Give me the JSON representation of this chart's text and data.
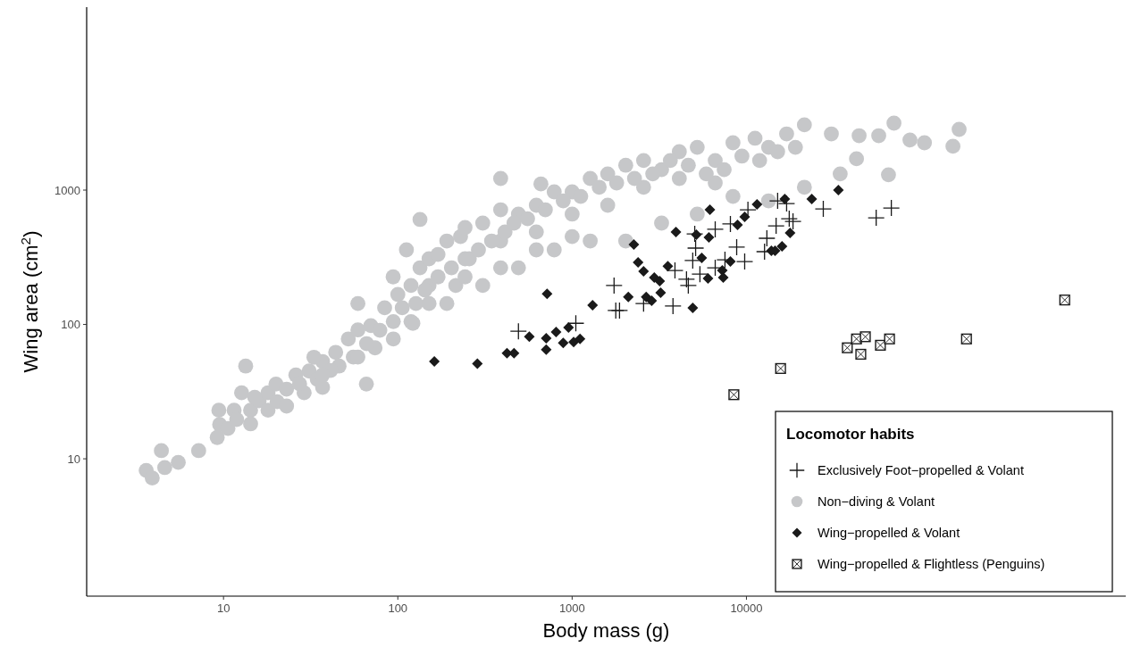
{
  "chart_data": {
    "type": "scatter",
    "xlabel": "Body mass (g)",
    "ylabel": "Wing area (cm$^{2}$)",
    "legend_title": "Locomotor habits",
    "legend": "bottom right",
    "grid": false,
    "log": "xy",
    "xlim": [
      1.64,
      1500000
    ],
    "ylim": [
      0.95,
      23000
    ],
    "xticks": [
      10,
      100,
      1000,
      10000
    ],
    "yticks": [
      10,
      100,
      1000
    ],
    "series": [
      {
        "name": "Exclusively Foot−propelled & Volant",
        "color": "#1a1a1a",
        "marker": "cross",
        "x": [
          492,
          1050,
          1740,
          1780,
          1870,
          2570,
          3790,
          4530,
          4640,
          5050,
          5110,
          4920,
          5410,
          3890,
          6620,
          6620,
          7530,
          8090,
          8790,
          9770,
          10200,
          12700,
          13100,
          14800,
          15100,
          17000,
          17600,
          18500,
          27600,
          55500,
          67800
        ],
        "values": [
          89,
          102,
          195,
          127,
          127,
          143,
          137,
          217,
          195,
          472,
          370,
          299,
          237,
          252,
          511,
          264,
          303,
          560,
          376,
          294,
          714,
          348,
          438,
          542,
          832,
          794,
          612,
          585,
          724,
          622,
          736
        ]
      },
      {
        "name": "Non−diving & Volant",
        "color": "#c6c7c9",
        "marker": "circle",
        "x": [
          3.6,
          3.9,
          4.6,
          5.5,
          7.2,
          9.2,
          9.4,
          11.5,
          12.7,
          14.3,
          16,
          18,
          20,
          23,
          26,
          31,
          37,
          44,
          52,
          59,
          70,
          84,
          100,
          119,
          134,
          151,
          170,
          191,
          229,
          243,
          307,
          389,
          492,
          623,
          789,
          1000,
          1270,
          1600,
          2030,
          2570,
          3260,
          4120,
          5220,
          6620,
          8370,
          11200,
          13400,
          17000,
          21500,
          30700,
          44300,
          57400,
          70200,
          86700,
          105000,
          166000,
          153000,
          42800,
          65300,
          18,
          29,
          46,
          74,
          119,
          191,
          307,
          492,
          789,
          1270,
          2030,
          3260,
          5220,
          8370,
          13400,
          21500,
          34500,
          13.4,
          37,
          122,
          134,
          112,
          662,
          4.4,
          9.5,
          66,
          33,
          59,
          94,
          151,
          243,
          389,
          623,
          1000,
          1600,
          2570,
          4120,
          6620,
          389,
          10.6,
          11.9,
          15.1,
          20.3,
          27.3,
          34.5,
          41.2,
          55.5,
          66.2,
          78.9,
          94.2,
          106,
          127,
          143,
          170,
          203,
          215,
          257,
          290,
          345,
          412,
          464,
          555,
          702,
          889,
          1120,
          1430,
          1800,
          2280,
          2900,
          3660,
          4640,
          5880,
          7450,
          9420,
          11900,
          15100,
          19100,
          623,
          1000,
          389,
          243,
          151,
          94.2,
          59,
          37,
          23,
          14.3
        ],
        "values": [
          8.2,
          7.2,
          8.6,
          9.4,
          11.5,
          14.4,
          23,
          23,
          31,
          23,
          27,
          31,
          36,
          33,
          42,
          45,
          53,
          62,
          78,
          91,
          98,
          133,
          167,
          195,
          264,
          308,
          332,
          418,
          451,
          308,
          568,
          714,
          662,
          771,
          970,
          970,
          1220,
          1320,
          1530,
          1660,
          1420,
          1930,
          2080,
          1660,
          2250,
          2430,
          2080,
          2620,
          3060,
          2620,
          2540,
          2540,
          3150,
          2360,
          2250,
          2830,
          2120,
          1710,
          1300,
          23,
          31,
          49,
          67,
          105,
          143,
          195,
          264,
          359,
          418,
          418,
          568,
          662,
          897,
          832,
          1050,
          1320,
          49,
          34,
          102,
          604,
          359,
          1110,
          11.5,
          18,
          36,
          57,
          143,
          226,
          195,
          526,
          418,
          488,
          662,
          771,
          1050,
          1220,
          1130,
          1220,
          16.8,
          19.6,
          28.7,
          26.6,
          36.1,
          39,
          45.5,
          57.2,
          72,
          90.5,
          105,
          133,
          143,
          180,
          226,
          264,
          195,
          308,
          359,
          418,
          488,
          568,
          612,
          714,
          832,
          897,
          1050,
          1130,
          1220,
          1320,
          1660,
          1530,
          1320,
          1420,
          1790,
          1660,
          1930,
          2080,
          359,
          451,
          264,
          226,
          143,
          78,
          57.2,
          42,
          24.7,
          18.2
        ]
      },
      {
        "name": "Wing−propelled & Volant",
        "color": "#1a1a1a",
        "marker": "diamond",
        "x": [
          162,
          286,
          423,
          464,
          568,
          710,
          710,
          809,
          953,
          889,
          1020,
          1110,
          1310,
          718,
          2100,
          2260,
          2390,
          2570,
          2660,
          2860,
          2960,
          3180,
          3220,
          3540,
          3940,
          4920,
          5160,
          5540,
          6090,
          6170,
          6020,
          7270,
          7360,
          8090,
          8890,
          9770,
          11500,
          13900,
          14600,
          16000,
          17800,
          16600,
          23700,
          33700
        ],
        "values": [
          53,
          51,
          61,
          61,
          81,
          79,
          65,
          88,
          95,
          73,
          74,
          78,
          139,
          169,
          160,
          394,
          290,
          249,
          160,
          150,
          223,
          210,
          172,
          272,
          488,
          133,
          466,
          313,
          445,
          714,
          220,
          252,
          223,
          294,
          551,
          632,
          783,
          353,
          353,
          381,
          480,
          859,
          859,
          1000
        ]
      },
      {
        "name": "Wing−propelled & Flightless (Penguins)",
        "color": "#1a1a1a",
        "marker": "square",
        "x": [
          8470,
          15700,
          37900,
          42800,
          48100,
          45300,
          58700,
          66200,
          183000,
          670000
        ],
        "values": [
          30,
          47,
          67,
          78,
          81,
          60,
          70,
          78,
          78,
          152
        ]
      }
    ]
  }
}
